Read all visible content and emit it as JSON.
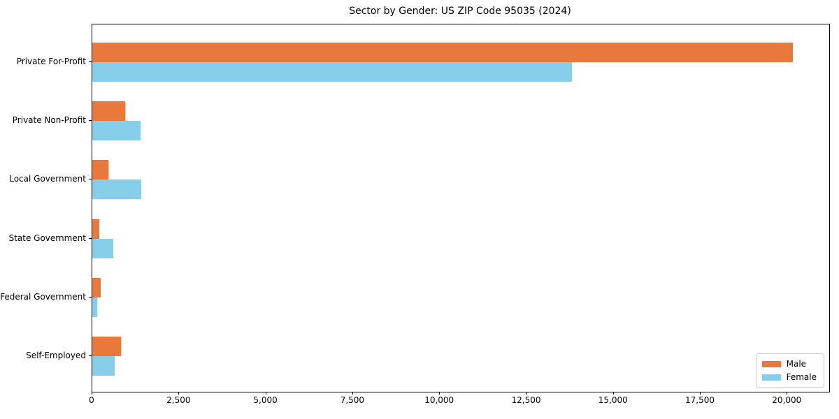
{
  "chart_data": {
    "type": "bar",
    "orientation": "horizontal",
    "title": "Sector by Gender: US ZIP Code 95035 (2024)",
    "categories": [
      "Private For-Profit",
      "Private Non-Profit",
      "Local Government",
      "State Government",
      "Federal Government",
      "Self-Employed"
    ],
    "series": [
      {
        "name": "Male",
        "color": "#E8783B",
        "values": [
          20160,
          950,
          470,
          195,
          250,
          820
        ]
      },
      {
        "name": "Female",
        "color": "#87CEEB",
        "values": [
          13800,
          1390,
          1410,
          600,
          145,
          640
        ]
      }
    ],
    "xlabel": "",
    "ylabel": "",
    "xlim": [
      0,
      21200
    ],
    "x_ticks": [
      0,
      2500,
      5000,
      7500,
      10000,
      12500,
      15000,
      17500,
      20000
    ],
    "grid": false,
    "legend": {
      "position": "lower right"
    }
  }
}
